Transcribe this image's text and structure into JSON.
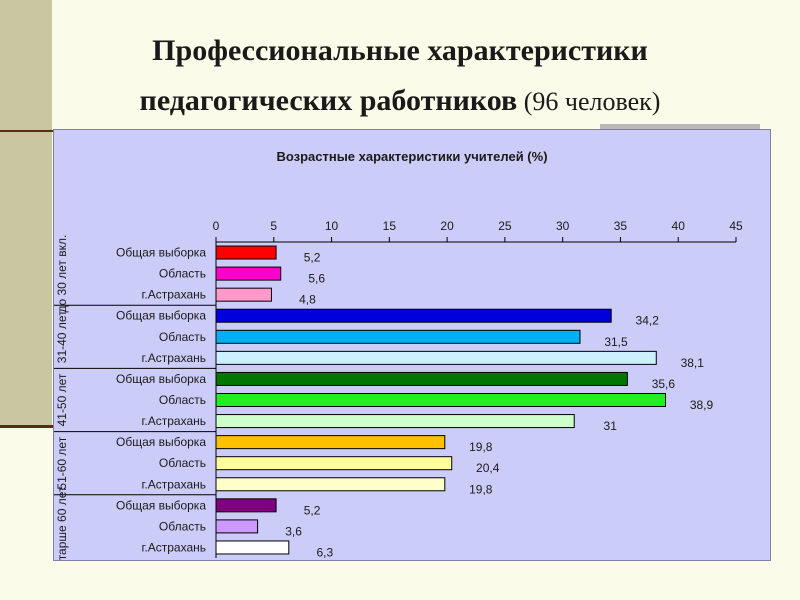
{
  "slide": {
    "title_line1": "Профессиональные характеристики",
    "title_line2_bold": "педагогических работников",
    "title_line2_normal": " (96 человек)"
  },
  "chart_data": {
    "type": "bar",
    "orientation": "horizontal",
    "title": "Возрастные характеристики учителей (%)",
    "xlim": [
      0,
      45
    ],
    "xticks": [
      0,
      5,
      10,
      15,
      20,
      25,
      30,
      35,
      40,
      45
    ],
    "x_axis_position": "top",
    "grid": false,
    "groups": [
      {
        "label": "до 30 лет вкл.",
        "bars": [
          {
            "label": "Общая выборка",
            "value": 5.2,
            "value_label": "5,2",
            "color": "#ff0000"
          },
          {
            "label": "Область",
            "value": 5.6,
            "value_label": "5,6",
            "color": "#ff00cc"
          },
          {
            "label": "г.Астрахань",
            "value": 4.8,
            "value_label": "4,8",
            "color": "#ff99cc"
          }
        ]
      },
      {
        "label": "31-40 лет",
        "bars": [
          {
            "label": "Общая выборка",
            "value": 34.2,
            "value_label": "34,2",
            "color": "#0000dd"
          },
          {
            "label": "Область",
            "value": 31.5,
            "value_label": "31,5",
            "color": "#00b0f0"
          },
          {
            "label": "г.Астрахань",
            "value": 38.1,
            "value_label": "38,1",
            "color": "#ccf0ff"
          }
        ]
      },
      {
        "label": "41-50 лет",
        "bars": [
          {
            "label": "Общая выборка",
            "value": 35.6,
            "value_label": "35,6",
            "color": "#007700"
          },
          {
            "label": "Область",
            "value": 38.9,
            "value_label": "38,9",
            "color": "#22ee22"
          },
          {
            "label": "г.Астрахань",
            "value": 31,
            "value_label": "31",
            "color": "#ccffcc"
          }
        ]
      },
      {
        "label": "51-60 лет",
        "bars": [
          {
            "label": "Общая выборка",
            "value": 19.8,
            "value_label": "19,8",
            "color": "#ffc000"
          },
          {
            "label": "Область",
            "value": 20.4,
            "value_label": "20,4",
            "color": "#ffff99"
          },
          {
            "label": "г.Астрахань",
            "value": 19.8,
            "value_label": "19,8",
            "color": "#ffffcc"
          }
        ]
      },
      {
        "label": "старше 60 лет",
        "bars": [
          {
            "label": "Общая выборка",
            "value": 5.2,
            "value_label": "5,2",
            "color": "#800080"
          },
          {
            "label": "Область",
            "value": 3.6,
            "value_label": "3,6",
            "color": "#cc99ff"
          },
          {
            "label": "г.Астрахань",
            "value": 6.3,
            "value_label": "6,3",
            "color": "#ffffff"
          }
        ]
      }
    ]
  }
}
